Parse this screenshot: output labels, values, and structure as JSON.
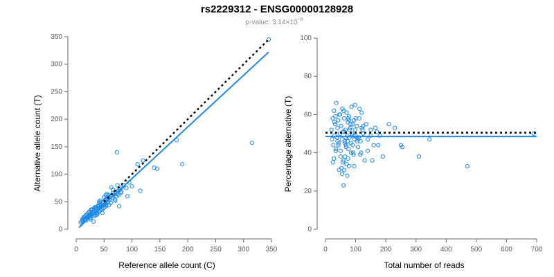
{
  "header": {
    "title": "rs2229312 - ENSG00000128928",
    "pvalue_label": "p-value: 3.14×10",
    "pvalue_exponent": "−6"
  },
  "colors": {
    "points": "#1e88e5",
    "fit_line": "#1e88e5",
    "reference_line": "#000000",
    "axis": "#666666"
  },
  "chart_data": [
    {
      "type": "scatter",
      "xlabel": "Reference allele count (C)",
      "ylabel": "Alternative allele count (T)",
      "xlim": [
        0,
        350
      ],
      "ylim": [
        0,
        350
      ],
      "xticks": [
        0,
        50,
        100,
        150,
        200,
        250,
        300,
        350
      ],
      "yticks": [
        0,
        50,
        100,
        150,
        200,
        250,
        300,
        350
      ],
      "points": {
        "x": [
          8,
          10,
          11,
          12,
          13,
          14,
          15,
          16,
          17,
          18,
          19,
          20,
          21,
          22,
          23,
          24,
          25,
          26,
          27,
          28,
          29,
          30,
          31,
          32,
          33,
          34,
          35,
          36,
          37,
          38,
          39,
          40,
          41,
          42,
          43,
          44,
          45,
          46,
          47,
          48,
          49,
          50,
          51,
          52,
          53,
          54,
          55,
          56,
          57,
          58,
          59,
          60,
          62,
          64,
          65,
          66,
          68,
          70,
          72,
          74,
          75,
          76,
          78,
          80,
          82,
          85,
          90,
          92,
          95,
          100,
          110,
          115,
          120,
          140,
          145,
          180,
          190,
          315,
          345,
          12,
          16,
          20,
          24,
          28,
          32,
          36,
          40,
          44,
          48,
          52,
          22,
          26,
          30,
          34,
          38,
          42,
          46,
          50,
          54,
          58,
          62,
          66,
          70,
          74,
          18,
          14,
          27,
          33,
          41,
          47,
          53,
          59,
          63,
          69,
          73,
          77,
          81,
          25,
          31,
          37,
          43,
          49,
          55
        ],
        "y": [
          12,
          14,
          18,
          16,
          20,
          22,
          17,
          24,
          19,
          26,
          21,
          28,
          23,
          30,
          25,
          32,
          27,
          22,
          34,
          29,
          36,
          31,
          28,
          38,
          33,
          26,
          40,
          35,
          30,
          42,
          37,
          32,
          44,
          39,
          34,
          46,
          41,
          36,
          48,
          43,
          50,
          45,
          40,
          52,
          47,
          42,
          54,
          49,
          56,
          51,
          58,
          53,
          60,
          62,
          57,
          66,
          63,
          68,
          60,
          64,
          70,
          62,
          72,
          66,
          76,
          80,
          75,
          60,
          85,
          78,
          118,
          70,
          125,
          112,
          110,
          162,
          118,
          157,
          345,
          14,
          18,
          22,
          26,
          30,
          34,
          38,
          42,
          46,
          50,
          54,
          24,
          18,
          32,
          40,
          28,
          48,
          36,
          58,
          44,
          62,
          48,
          72,
          52,
          80,
          16,
          22,
          36,
          24,
          50,
          30,
          62,
          44,
          76,
          54,
          140,
          42,
          68,
          20,
          14,
          26,
          52,
          38,
          64
        ],
        "marker": "open-circle"
      },
      "series": [
        {
          "name": "",
          "kind": "fit",
          "x": [
            5,
            345
          ],
          "y": [
            3,
            322
          ],
          "style": "solid"
        },
        {
          "name": "",
          "kind": "reference",
          "x": [
            50,
            345
          ],
          "y": [
            50,
            345
          ],
          "style": "dotted"
        }
      ]
    },
    {
      "type": "scatter",
      "xlabel": "Total number of reads",
      "ylabel": "Percentage alternative (T)",
      "xlim": [
        0,
        700
      ],
      "ylim": [
        0,
        100
      ],
      "xticks": [
        0,
        100,
        200,
        300,
        400,
        500,
        600,
        700
      ],
      "yticks": [
        0,
        20,
        40,
        60,
        80,
        100
      ],
      "points": {
        "x": [
          20,
          22,
          24,
          26,
          28,
          30,
          32,
          34,
          36,
          38,
          40,
          42,
          44,
          46,
          48,
          50,
          52,
          54,
          56,
          58,
          60,
          62,
          64,
          66,
          68,
          70,
          72,
          74,
          76,
          78,
          80,
          82,
          84,
          86,
          88,
          90,
          92,
          94,
          96,
          98,
          100,
          104,
          108,
          112,
          116,
          120,
          125,
          130,
          135,
          140,
          150,
          160,
          170,
          180,
          190,
          210,
          230,
          250,
          255,
          310,
          345,
          470,
          690,
          25,
          35,
          45,
          55,
          65,
          75,
          85,
          95,
          105,
          115,
          125,
          30,
          40,
          50,
          60,
          70,
          80,
          90,
          100,
          110,
          120,
          28,
          38,
          48,
          58,
          68,
          78,
          88,
          98,
          108,
          118,
          33,
          43,
          53,
          63,
          73,
          83,
          93,
          103,
          113,
          123,
          140,
          150,
          155,
          165,
          175,
          60,
          62,
          65,
          68,
          72,
          75,
          78
        ],
        "y": [
          52,
          47,
          58,
          44,
          62,
          49,
          55,
          41,
          66,
          48,
          53,
          57,
          45,
          60,
          50,
          38,
          54,
          47,
          63,
          51,
          36,
          58,
          46,
          52,
          44,
          61,
          49,
          56,
          42,
          59,
          48,
          53,
          45,
          64,
          50,
          55,
          40,
          57,
          47,
          52,
          49,
          54,
          43,
          58,
          46,
          61,
          50,
          36,
          55,
          47,
          52,
          44,
          51,
          49,
          38,
          55,
          53,
          44,
          43,
          38,
          47,
          33,
          50,
          35,
          42,
          31,
          29,
          45,
          37,
          40,
          33,
          46,
          39,
          54,
          56,
          46,
          41,
          62,
          34,
          52,
          44,
          58,
          48,
          53,
          37,
          48,
          60,
          35,
          43,
          57,
          49,
          65,
          47,
          40,
          59,
          44,
          32,
          51,
          46,
          55,
          39,
          48,
          63,
          52,
          41,
          49,
          36,
          53,
          44,
          23,
          31,
          38,
          48,
          28,
          58,
          33
        ],
        "marker": "open-circle"
      },
      "series": [
        {
          "name": "",
          "kind": "fit",
          "x": [
            0,
            700
          ],
          "y": [
            48.5,
            48.5
          ],
          "style": "solid"
        },
        {
          "name": "",
          "kind": "reference",
          "x": [
            0,
            700
          ],
          "y": [
            50.5,
            50.5
          ],
          "style": "dotted"
        }
      ]
    }
  ]
}
